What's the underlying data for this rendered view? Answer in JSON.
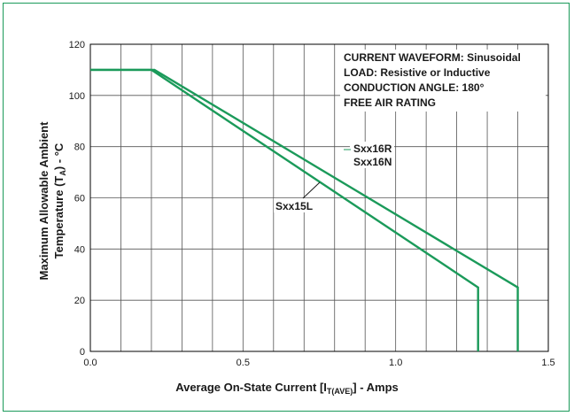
{
  "chart_data": {
    "type": "line",
    "xlabel_main": "Average On-State Current [I",
    "xlabel_sub": "T(AVE)",
    "xlabel_tail": "] - Amps",
    "ylabel_line1": "Maximum Allowable Ambient",
    "ylabel_line2_main": "Temperature (T",
    "ylabel_line2_sub": "A",
    "ylabel_line2_tail": ") - °C",
    "xlim": [
      0.0,
      1.5
    ],
    "ylim": [
      0,
      120
    ],
    "x_ticks": [
      "0.0",
      "0.5",
      "1.0",
      "1.5"
    ],
    "x_tick_values": [
      0.0,
      0.5,
      1.0,
      1.5
    ],
    "y_ticks": [
      "0",
      "20",
      "40",
      "60",
      "80",
      "100",
      "120"
    ],
    "y_tick_values": [
      0,
      20,
      40,
      60,
      80,
      100,
      120
    ],
    "grid": true,
    "line_color": "#1b9a5a",
    "notes": [
      "CURRENT WAVEFORM: Sinusoidal",
      "LOAD: Resistive or Inductive",
      "CONDUCTION ANGLE: 180°",
      "FREE AIR RATING"
    ],
    "series": [
      {
        "name": "Sxx15L",
        "x": [
          0.0,
          0.2,
          1.27,
          1.27
        ],
        "y": [
          110,
          110,
          25,
          0
        ]
      },
      {
        "name": "Sxx16R",
        "name2": "Sxx16N",
        "x": [
          0.0,
          0.21,
          1.4,
          1.4
        ],
        "y": [
          110,
          110,
          25,
          0
        ]
      }
    ]
  }
}
